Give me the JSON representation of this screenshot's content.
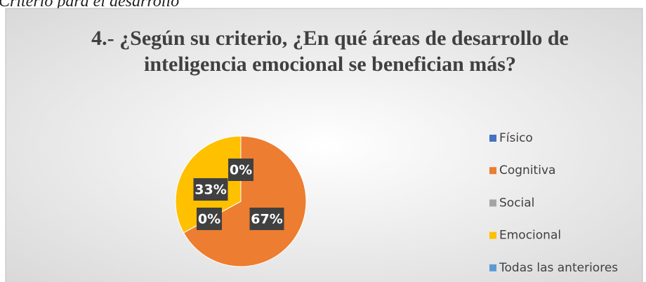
{
  "caption": "Criterio para el desarrollo",
  "chart_data": {
    "type": "pie",
    "title": [
      "4.- ¿Según su criterio, ¿En qué áreas de desarrollo de",
      "inteligencia emocional se benefician más?"
    ],
    "categories": [
      "Físico",
      "Cognitiva",
      "Social",
      "Emocional",
      "Todas las anteriores"
    ],
    "values": [
      0,
      67,
      0,
      33,
      0
    ],
    "value_labels": [
      "0%",
      "67%",
      "0%",
      "33%",
      "0%"
    ],
    "colors": [
      "#4472c4",
      "#ed7d31",
      "#a5a5a5",
      "#ffc000",
      "#5b9bd5"
    ],
    "legend": "right"
  }
}
